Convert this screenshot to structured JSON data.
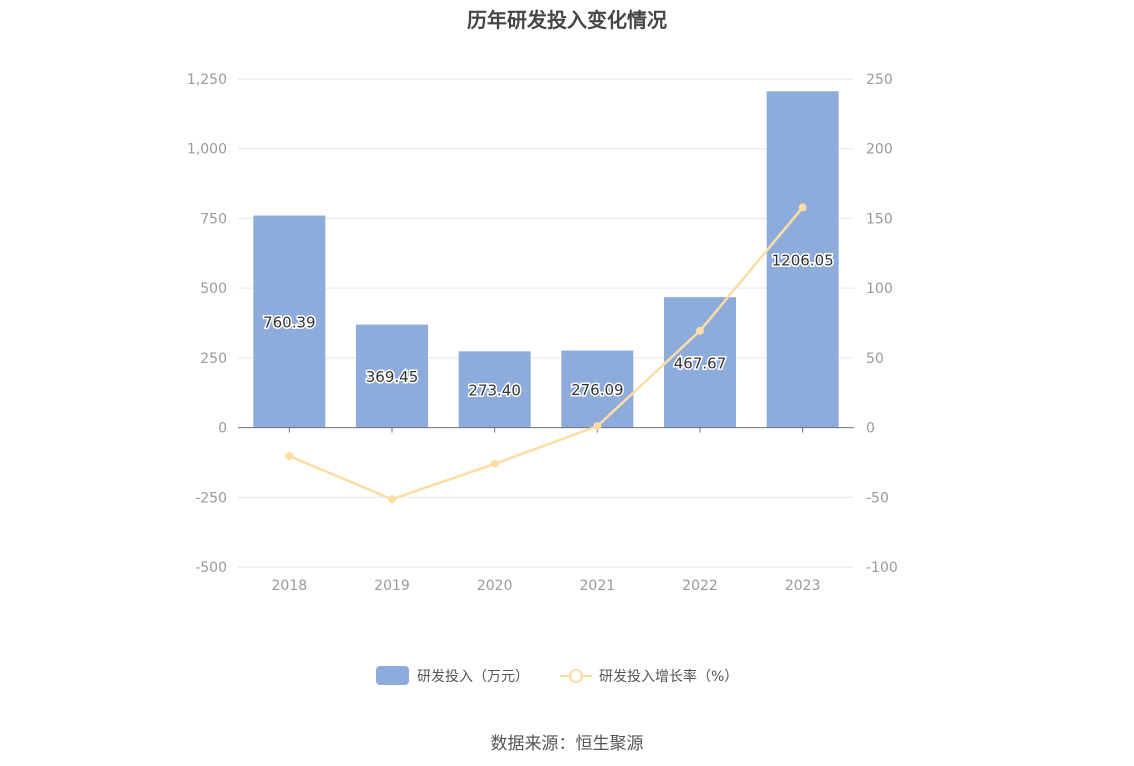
{
  "title": "历年研发投入变化情况",
  "source": "数据来源：恒生聚源",
  "colors": {
    "bar": "#8eacdb",
    "line": "#fcdda4",
    "grid": "#e3e6f0",
    "axis": "#6e7079"
  },
  "chart_data": {
    "type": "bar",
    "categories": [
      "2018",
      "2019",
      "2020",
      "2021",
      "2022",
      "2023"
    ],
    "series": [
      {
        "name": "研发投入（万元）",
        "type": "bar",
        "axis": "left",
        "values": [
          760.39,
          369.45,
          273.4,
          276.09,
          467.67,
          1206.05
        ],
        "labels": [
          "760.39",
          "369.45",
          "273.40",
          "276.09",
          "467.67",
          "1206.05"
        ]
      },
      {
        "name": "研发投入增长率（%）",
        "type": "line",
        "axis": "right",
        "values": [
          -20.5,
          -51.4,
          -26.0,
          1.0,
          69.4,
          157.9
        ]
      }
    ],
    "y_left": {
      "ylim": [
        -500,
        1250
      ],
      "ticks": [
        "-500",
        "-250",
        "0",
        "250",
        "500",
        "750",
        "1,000",
        "1,250"
      ]
    },
    "y_right": {
      "ylim": [
        -100,
        250
      ],
      "ticks": [
        "-100",
        "-50",
        "0",
        "50",
        "100",
        "150",
        "200",
        "250"
      ]
    },
    "grid": true,
    "legend_position": "bottom-center"
  }
}
